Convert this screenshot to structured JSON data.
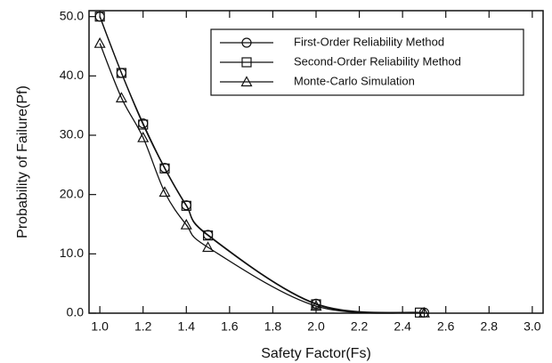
{
  "chart_data": {
    "type": "line",
    "xlabel": "Safety Factor(Fs)",
    "ylabel": "Probability of Failure(Pf)",
    "xlim": [
      0.95,
      3.05
    ],
    "ylim": [
      0,
      51
    ],
    "xticks": [
      {
        "value": 1.0,
        "label": "1.0"
      },
      {
        "value": 1.2,
        "label": "1.2"
      },
      {
        "value": 1.4,
        "label": "1.4"
      },
      {
        "value": 1.6,
        "label": "1.6"
      },
      {
        "value": 1.8,
        "label": "1.8"
      },
      {
        "value": 2.0,
        "label": "2.0"
      },
      {
        "value": 2.2,
        "label": "2.2"
      },
      {
        "value": 2.4,
        "label": "2.4"
      },
      {
        "value": 2.6,
        "label": "2.6"
      },
      {
        "value": 2.8,
        "label": "2.8"
      },
      {
        "value": 3.0,
        "label": "3.0"
      }
    ],
    "yticks": [
      {
        "value": 0,
        "label": "0.0"
      },
      {
        "value": 10,
        "label": "10.0"
      },
      {
        "value": 20,
        "label": "20.0"
      },
      {
        "value": 30,
        "label": "30.0"
      },
      {
        "value": 40,
        "label": "40.0"
      },
      {
        "value": 50,
        "label": "50.0"
      }
    ],
    "legend_position": "upper right",
    "series": [
      {
        "name": "First-Order Reliability Method",
        "color": "#111111",
        "marker": "circle",
        "x": [
          1.0,
          1.1,
          1.2,
          1.3,
          1.4,
          1.5,
          2.0,
          2.5
        ],
        "values": [
          50,
          40.5,
          32,
          24.5,
          18.2,
          13.2,
          1.6,
          0.1
        ]
      },
      {
        "name": "Second-Order Reliability Method",
        "color": "#111111",
        "marker": "square",
        "x": [
          1.0,
          1.1,
          1.2,
          1.3,
          1.4,
          1.5,
          2.0,
          2.48
        ],
        "values": [
          50,
          40.5,
          31.8,
          24.4,
          18.1,
          13.1,
          1.5,
          0.1
        ]
      },
      {
        "name": "Monte-Carlo Simulation",
        "color": "#111111",
        "marker": "triangle",
        "x": [
          1.0,
          1.1,
          1.2,
          1.3,
          1.4,
          1.5,
          2.0,
          2.5
        ],
        "values": [
          45.5,
          36.3,
          29.6,
          20.4,
          14.9,
          11.1,
          1.2,
          0.05
        ]
      }
    ]
  }
}
